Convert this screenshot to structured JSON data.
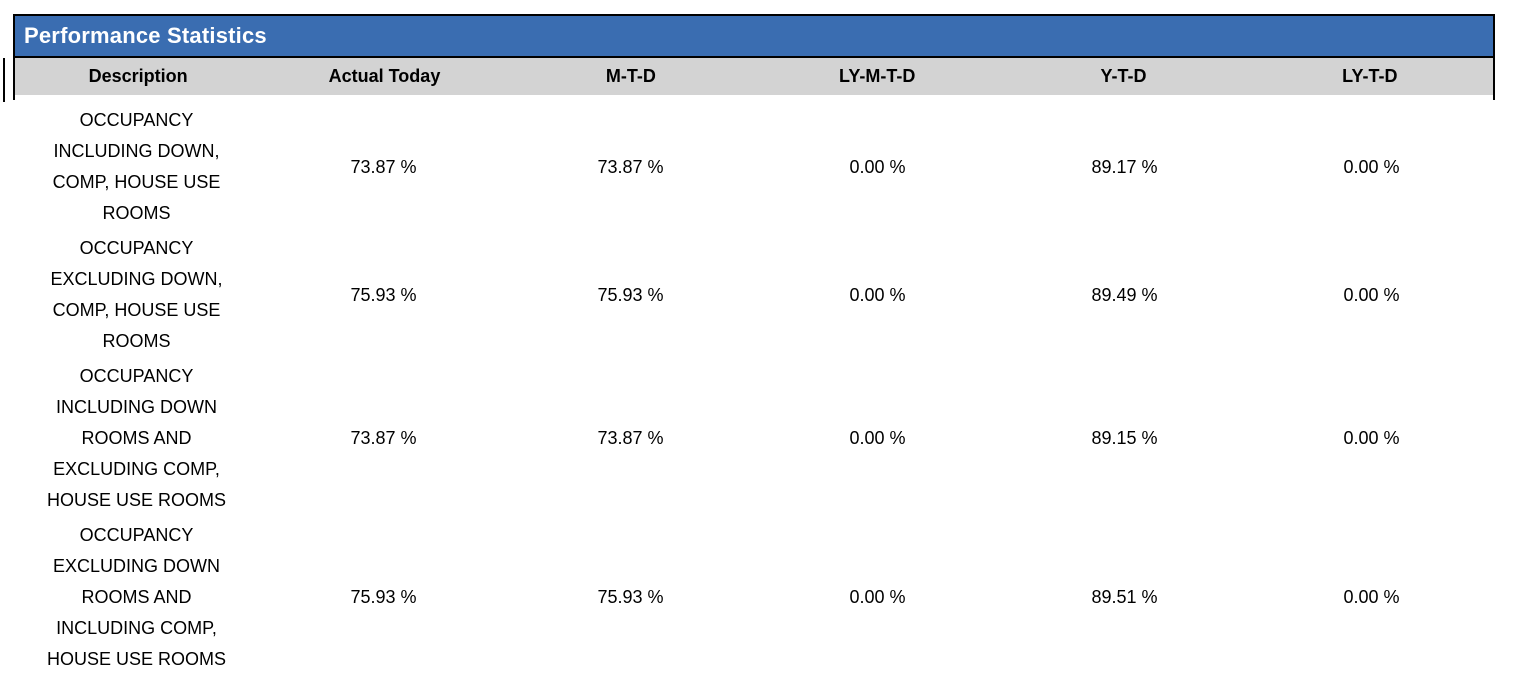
{
  "report": {
    "title": "Performance Statistics",
    "colors": {
      "title_bar_bg": "#3A6DB1",
      "title_text": "#FFFFFF",
      "header_bg": "#D3D3D3",
      "border": "#000000",
      "body_text": "#000000",
      "page_bg": "#FFFFFF"
    },
    "table": {
      "columns": [
        "Description",
        "Actual Today",
        "M-T-D",
        "LY-M-T-D",
        "Y-T-D",
        "LY-T-D"
      ],
      "rows": [
        {
          "description": "OCCUPANCY INCLUDING DOWN, COMP, HOUSE USE ROOMS",
          "description_lines": [
            "OCCUPANCY",
            "INCLUDING DOWN,",
            "COMP, HOUSE USE",
            "ROOMS"
          ],
          "values": [
            "73.87 %",
            "73.87 %",
            "0.00 %",
            "89.17 %",
            "0.00 %"
          ]
        },
        {
          "description": "OCCUPANCY EXCLUDING DOWN, COMP, HOUSE USE ROOMS",
          "description_lines": [
            "OCCUPANCY",
            "EXCLUDING DOWN,",
            "COMP, HOUSE USE",
            "ROOMS"
          ],
          "values": [
            "75.93 %",
            "75.93 %",
            "0.00 %",
            "89.49 %",
            "0.00 %"
          ]
        },
        {
          "description": "OCCUPANCY INCLUDING DOWN ROOMS AND EXCLUDING COMP, HOUSE USE ROOMS",
          "description_lines": [
            "OCCUPANCY",
            "INCLUDING DOWN",
            "ROOMS AND",
            "EXCLUDING COMP,",
            "HOUSE USE ROOMS"
          ],
          "values": [
            "73.87 %",
            "73.87 %",
            "0.00 %",
            "89.15 %",
            "0.00 %"
          ]
        },
        {
          "description": "OCCUPANCY EXCLUDING DOWN ROOMS AND INCLUDING COMP, HOUSE USE ROOMS",
          "description_lines": [
            "OCCUPANCY",
            "EXCLUDING DOWN",
            "ROOMS AND",
            "INCLUDING COMP,",
            "HOUSE USE ROOMS"
          ],
          "values": [
            "75.93 %",
            "75.93 %",
            "0.00 %",
            "89.51 %",
            "0.00 %"
          ]
        }
      ]
    }
  }
}
